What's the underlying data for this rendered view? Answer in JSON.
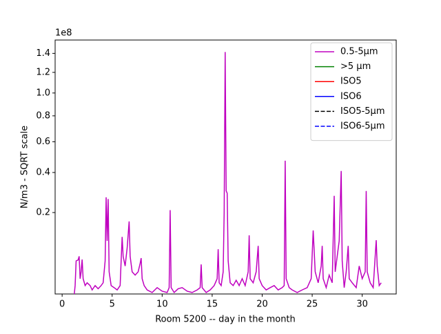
{
  "chart_data": {
    "type": "line",
    "xlabel": "Room 5200 -- day in the month",
    "ylabel": "N/m3 - SQRT scale",
    "y_offset_label": "1e8",
    "yscale": "sqrt",
    "legend": "upper right",
    "xlim": [
      -0.7,
      33.4
    ],
    "ylim": [
      0.005,
      1.55
    ],
    "xticks": [
      0,
      5,
      10,
      15,
      20,
      25,
      30
    ],
    "yticks": [
      0.2,
      0.4,
      0.6,
      0.8,
      {
        "value": 1,
        "label": "1.0"
      },
      1.2,
      1.4
    ],
    "series": [
      {
        "name": "0.5-5µm",
        "color": "#bf00bf",
        "linestyle": "solid",
        "x": [
          1.2,
          1.3,
          1.4,
          1.6,
          1.7,
          1.8,
          1.9,
          2.0,
          2.1,
          2.3,
          2.5,
          2.8,
          3.0,
          3.3,
          3.6,
          3.9,
          4.1,
          4.3,
          4.4,
          4.5,
          4.6,
          4.7,
          4.9,
          5.2,
          5.5,
          5.8,
          5.9,
          6.0,
          6.1,
          6.3,
          6.5,
          6.7,
          6.8,
          7.0,
          7.3,
          7.6,
          7.8,
          7.9,
          8.0,
          8.2,
          8.5,
          9.0,
          9.5,
          10.0,
          10.5,
          10.7,
          10.8,
          10.9,
          11.2,
          11.6,
          12.0,
          12.5,
          13.0,
          13.5,
          13.8,
          13.9,
          14.0,
          14.4,
          14.8,
          15.2,
          15.5,
          15.6,
          15.7,
          15.9,
          16.1,
          16.2,
          16.3,
          16.4,
          16.5,
          16.6,
          16.8,
          17.1,
          17.4,
          17.7,
          18.0,
          18.3,
          18.6,
          18.7,
          18.8,
          19.1,
          19.4,
          19.6,
          19.7,
          20.0,
          20.4,
          20.8,
          21.2,
          21.6,
          22.0,
          22.2,
          22.3,
          22.4,
          22.7,
          23.0,
          23.5,
          24.0,
          24.5,
          24.9,
          25.1,
          25.3,
          25.6,
          25.9,
          26.0,
          26.1,
          26.4,
          26.7,
          27.0,
          27.2,
          27.3,
          27.5,
          27.7,
          27.9,
          28.0,
          28.2,
          28.4,
          28.6,
          28.7,
          29.0,
          29.4,
          29.7,
          30.0,
          30.3,
          30.4,
          30.5,
          30.8,
          31.1,
          31.4,
          31.5,
          31.7,
          31.9
        ],
        "values": [
          0.004,
          0.012,
          0.05,
          0.052,
          0.06,
          0.02,
          0.03,
          0.053,
          0.02,
          0.012,
          0.015,
          0.012,
          0.008,
          0.012,
          0.009,
          0.012,
          0.015,
          0.05,
          0.268,
          0.1,
          0.26,
          0.03,
          0.012,
          0.01,
          0.008,
          0.012,
          0.05,
          0.112,
          0.06,
          0.04,
          0.08,
          0.165,
          0.06,
          0.03,
          0.025,
          0.03,
          0.045,
          0.056,
          0.02,
          0.012,
          0.008,
          0.006,
          0.01,
          0.007,
          0.006,
          0.01,
          0.21,
          0.01,
          0.006,
          0.009,
          0.01,
          0.007,
          0.006,
          0.008,
          0.01,
          0.043,
          0.01,
          0.006,
          0.008,
          0.012,
          0.02,
          0.077,
          0.015,
          0.012,
          0.03,
          0.2,
          1.415,
          0.3,
          0.288,
          0.05,
          0.015,
          0.012,
          0.018,
          0.012,
          0.02,
          0.012,
          0.03,
          0.117,
          0.02,
          0.015,
          0.03,
          0.086,
          0.02,
          0.012,
          0.008,
          0.01,
          0.012,
          0.008,
          0.01,
          0.012,
          0.472,
          0.02,
          0.01,
          0.008,
          0.006,
          0.008,
          0.01,
          0.02,
          0.133,
          0.03,
          0.015,
          0.04,
          0.086,
          0.02,
          0.01,
          0.025,
          0.015,
          0.275,
          0.03,
          0.06,
          0.1,
          0.409,
          0.05,
          0.01,
          0.03,
          0.086,
          0.02,
          0.015,
          0.01,
          0.04,
          0.02,
          0.03,
          0.299,
          0.03,
          0.015,
          0.01,
          0.102,
          0.04,
          0.012,
          0.015
        ]
      },
      {
        "name": ">5 µm",
        "color": "#008000",
        "linestyle": "solid",
        "x": [],
        "values": []
      },
      {
        "name": "ISO5",
        "color": "#ff0000",
        "linestyle": "solid",
        "x": [],
        "values": []
      },
      {
        "name": "ISO6",
        "color": "#0000ff",
        "linestyle": "solid",
        "x": [],
        "values": []
      },
      {
        "name": "ISO5-5µm",
        "color": "#000000",
        "linestyle": "dashed",
        "x": [],
        "values": []
      },
      {
        "name": "ISO6-5µm",
        "color": "#0000ff",
        "linestyle": "dashed",
        "x": [],
        "values": []
      }
    ]
  }
}
